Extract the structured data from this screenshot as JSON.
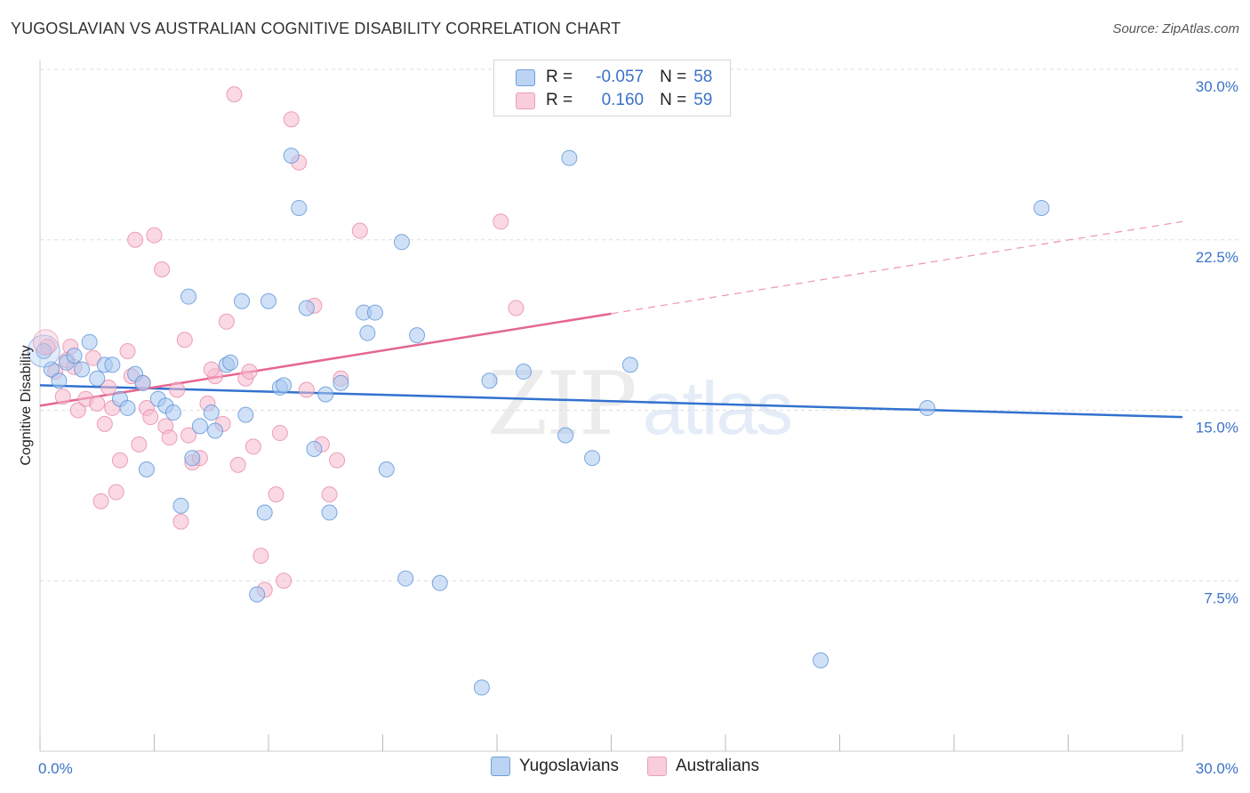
{
  "title": "YUGOSLAVIAN VS AUSTRALIAN COGNITIVE DISABILITY CORRELATION CHART",
  "source": "Source: ZipAtlas.com",
  "watermark": {
    "zip": "ZIP",
    "atlas": "atlas"
  },
  "legend": {
    "rows": [
      {
        "r_label": "R =",
        "r_value": "-0.057",
        "n_label": "N =",
        "n_value": "58"
      },
      {
        "r_label": "R =",
        "r_value": "0.160",
        "n_label": "N =",
        "n_value": "59"
      }
    ]
  },
  "colors": {
    "blue": "#a9c8f0",
    "blue_stroke": "#5d93d8",
    "blue_line": "#3272cf",
    "pink": "#f6b9cd",
    "pink_stroke": "#e88aa9",
    "pink_line": "#e5668f",
    "grid": "#dddddd",
    "tick_text": "#3b73c8"
  },
  "chart_data": {
    "type": "scatter",
    "title": "YUGOSLAVIAN VS AUSTRALIAN COGNITIVE DISABILITY CORRELATION CHART",
    "ylabel": "Cognitive Disability",
    "xlim": [
      0,
      30
    ],
    "ylim": [
      0,
      30
    ],
    "y_ticks": [
      7.5,
      15.0,
      22.5,
      30.0
    ],
    "y_tick_labels": [
      "7.5%",
      "15.0%",
      "22.5%",
      "30.0%"
    ],
    "x_tick_labels": [
      "0.0%",
      "30.0%"
    ],
    "grid": true,
    "legend_position": "top-center",
    "series": [
      {
        "name": "Yugoslavians",
        "color": "#a9c8f0",
        "trend": {
          "x0": 0,
          "y0": 16.1,
          "x1": 30,
          "y1": 14.7,
          "dash_from": null
        },
        "points": [
          [
            0.3,
            16.8
          ],
          [
            0.5,
            16.3
          ],
          [
            0.7,
            17.1
          ],
          [
            0.9,
            17.4
          ],
          [
            1.1,
            16.8
          ],
          [
            1.3,
            18.0
          ],
          [
            1.5,
            16.4
          ],
          [
            1.7,
            17.0
          ],
          [
            1.9,
            17.0
          ],
          [
            2.1,
            15.5
          ],
          [
            2.3,
            15.1
          ],
          [
            2.5,
            16.6
          ],
          [
            2.7,
            16.2
          ],
          [
            2.8,
            12.4
          ],
          [
            3.1,
            15.5
          ],
          [
            3.3,
            15.2
          ],
          [
            3.5,
            14.9
          ],
          [
            3.7,
            10.8
          ],
          [
            3.9,
            20.0
          ],
          [
            4.0,
            12.9
          ],
          [
            4.2,
            14.3
          ],
          [
            4.5,
            14.9
          ],
          [
            4.6,
            14.1
          ],
          [
            4.9,
            17.0
          ],
          [
            5.0,
            17.1
          ],
          [
            5.3,
            19.8
          ],
          [
            5.4,
            14.8
          ],
          [
            5.7,
            6.9
          ],
          [
            5.9,
            10.5
          ],
          [
            6.0,
            19.8
          ],
          [
            6.3,
            16.0
          ],
          [
            6.4,
            16.1
          ],
          [
            6.6,
            26.2
          ],
          [
            6.8,
            23.9
          ],
          [
            7.0,
            19.5
          ],
          [
            7.2,
            13.3
          ],
          [
            7.5,
            15.7
          ],
          [
            7.6,
            10.5
          ],
          [
            7.9,
            16.2
          ],
          [
            8.5,
            19.3
          ],
          [
            8.6,
            18.4
          ],
          [
            8.8,
            19.3
          ],
          [
            9.1,
            12.4
          ],
          [
            9.5,
            22.4
          ],
          [
            9.6,
            7.6
          ],
          [
            9.9,
            18.3
          ],
          [
            10.5,
            7.4
          ],
          [
            11.6,
            2.8
          ],
          [
            11.8,
            16.3
          ],
          [
            12.7,
            16.7
          ],
          [
            13.8,
            13.9
          ],
          [
            13.9,
            26.1
          ],
          [
            14.5,
            12.9
          ],
          [
            15.5,
            17.0
          ],
          [
            20.5,
            4.0
          ],
          [
            23.3,
            15.1
          ],
          [
            26.3,
            23.9
          ],
          [
            0.1,
            17.6
          ]
        ]
      },
      {
        "name": "Australians",
        "color": "#f6b9cd",
        "trend": {
          "x0": 0,
          "y0": 15.2,
          "x1": 30,
          "y1": 23.3,
          "dash_from": 15.0
        },
        "points": [
          [
            0.2,
            17.8
          ],
          [
            0.4,
            16.7
          ],
          [
            0.6,
            15.6
          ],
          [
            0.7,
            17.2
          ],
          [
            0.8,
            17.8
          ],
          [
            1.0,
            15.0
          ],
          [
            1.2,
            15.5
          ],
          [
            1.4,
            17.3
          ],
          [
            1.5,
            15.3
          ],
          [
            1.6,
            11.0
          ],
          [
            1.7,
            14.4
          ],
          [
            1.9,
            15.1
          ],
          [
            2.0,
            11.4
          ],
          [
            2.1,
            12.8
          ],
          [
            2.3,
            17.6
          ],
          [
            2.4,
            16.5
          ],
          [
            2.5,
            22.5
          ],
          [
            2.7,
            16.2
          ],
          [
            2.8,
            15.1
          ],
          [
            2.9,
            14.7
          ],
          [
            3.0,
            22.7
          ],
          [
            3.2,
            21.2
          ],
          [
            3.3,
            14.3
          ],
          [
            3.4,
            13.8
          ],
          [
            3.6,
            15.9
          ],
          [
            3.7,
            10.1
          ],
          [
            3.8,
            18.1
          ],
          [
            3.9,
            13.9
          ],
          [
            4.0,
            12.7
          ],
          [
            4.2,
            12.9
          ],
          [
            4.4,
            15.3
          ],
          [
            4.6,
            16.5
          ],
          [
            4.8,
            14.4
          ],
          [
            4.9,
            18.9
          ],
          [
            5.1,
            28.9
          ],
          [
            5.2,
            12.6
          ],
          [
            5.4,
            16.4
          ],
          [
            5.5,
            16.7
          ],
          [
            5.6,
            13.4
          ],
          [
            5.8,
            8.6
          ],
          [
            5.9,
            7.1
          ],
          [
            6.2,
            11.3
          ],
          [
            6.3,
            14.0
          ],
          [
            6.4,
            7.5
          ],
          [
            6.6,
            27.8
          ],
          [
            6.8,
            25.9
          ],
          [
            7.0,
            15.9
          ],
          [
            7.2,
            19.6
          ],
          [
            7.4,
            13.5
          ],
          [
            7.6,
            11.3
          ],
          [
            7.8,
            12.8
          ],
          [
            8.4,
            22.9
          ],
          [
            12.1,
            23.3
          ],
          [
            12.5,
            19.5
          ],
          [
            0.9,
            16.9
          ],
          [
            1.8,
            16.0
          ],
          [
            2.6,
            13.5
          ],
          [
            4.5,
            16.8
          ],
          [
            7.9,
            16.4
          ]
        ]
      }
    ]
  }
}
